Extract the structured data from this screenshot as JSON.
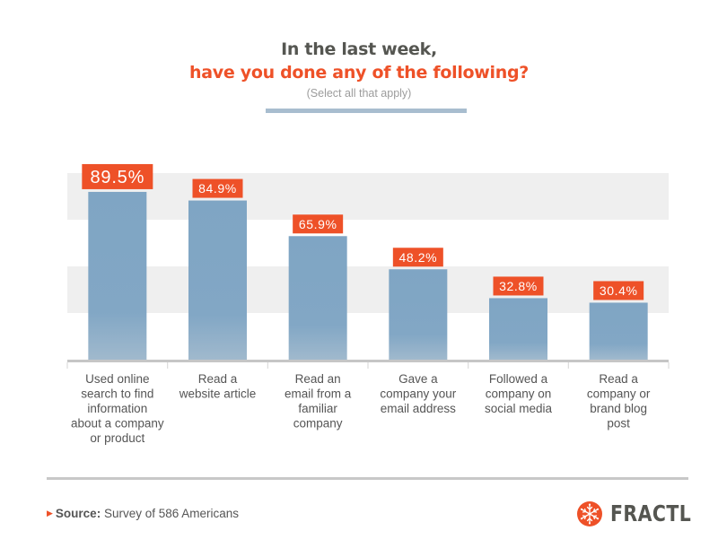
{
  "header": {
    "title_line1": "In the last week,",
    "title_line2": "have you done any of the following?",
    "subtitle": "(Select all that apply)"
  },
  "colors": {
    "accent": "#ee5128",
    "bar": "#7fa5c4",
    "bar_fade": "#a0b9cd",
    "band": "#efefef",
    "title_dark": "#555651"
  },
  "chart_data": {
    "type": "bar",
    "title": "In the last week, have you done any of the following?",
    "subtitle": "(Select all that apply)",
    "xlabel": "",
    "ylabel": "",
    "ylim": [
      0,
      100
    ],
    "grid": "alternating horizontal bands",
    "legend": "none",
    "categories": [
      "Used online search to find information about a company or product",
      "Read a website article",
      "Read an email from a familiar company",
      "Gave a company your email address",
      "Followed a company on social media",
      "Read a company or brand blog post"
    ],
    "category_lines": [
      [
        "Used online",
        "search to find",
        "information",
        "about a company",
        "or product"
      ],
      [
        "Read a",
        "website article"
      ],
      [
        "Read an",
        "email from a",
        "familiar",
        "company"
      ],
      [
        "Gave a",
        "company your",
        "email address"
      ],
      [
        "Followed a",
        "company on",
        "social media"
      ],
      [
        "Read a",
        "company or",
        "brand blog",
        "post"
      ]
    ],
    "values": [
      89.5,
      84.9,
      65.9,
      48.2,
      32.8,
      30.4
    ],
    "data_labels": [
      "89.5%",
      "84.9%",
      "65.9%",
      "48.2%",
      "32.8%",
      "30.4%"
    ],
    "highlighted_index": 0
  },
  "footer": {
    "source_label": "Source:",
    "source_text": " Survey of 586 Americans",
    "brand": "FRACTL",
    "brand_icon": "snowflake-icon"
  }
}
